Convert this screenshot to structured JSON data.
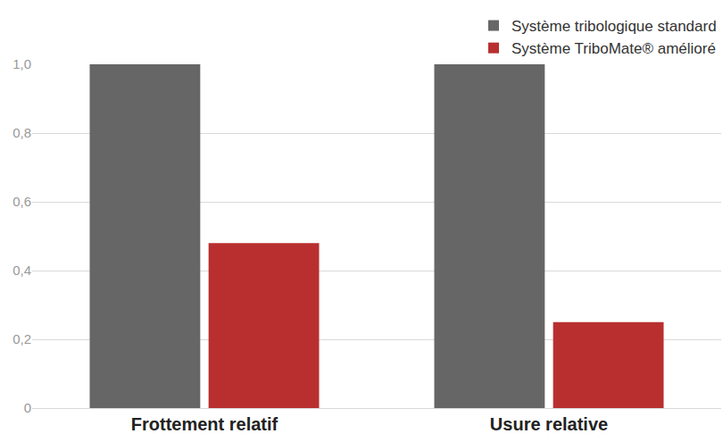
{
  "chart_data": {
    "type": "bar",
    "categories": [
      "Frottement relatif",
      "Usure relative"
    ],
    "series": [
      {
        "name": "Système tribologique standard",
        "color": "#666666",
        "values": [
          1.0,
          1.0
        ]
      },
      {
        "name": "Système TriboMate® amélioré",
        "color": "#b92f2f",
        "values": [
          0.48,
          0.25
        ]
      }
    ],
    "ylim": [
      0,
      1.0
    ],
    "yticks": [
      0,
      {
        "value": 0.2,
        "label": "0,2"
      },
      {
        "value": 0.4,
        "label": "0,4"
      },
      {
        "value": 0.6,
        "label": "0,6"
      },
      {
        "value": 0.8,
        "label": "0,8"
      },
      {
        "value": 1.0,
        "label": "1,0"
      }
    ],
    "grid": true,
    "legend": "top right"
  }
}
